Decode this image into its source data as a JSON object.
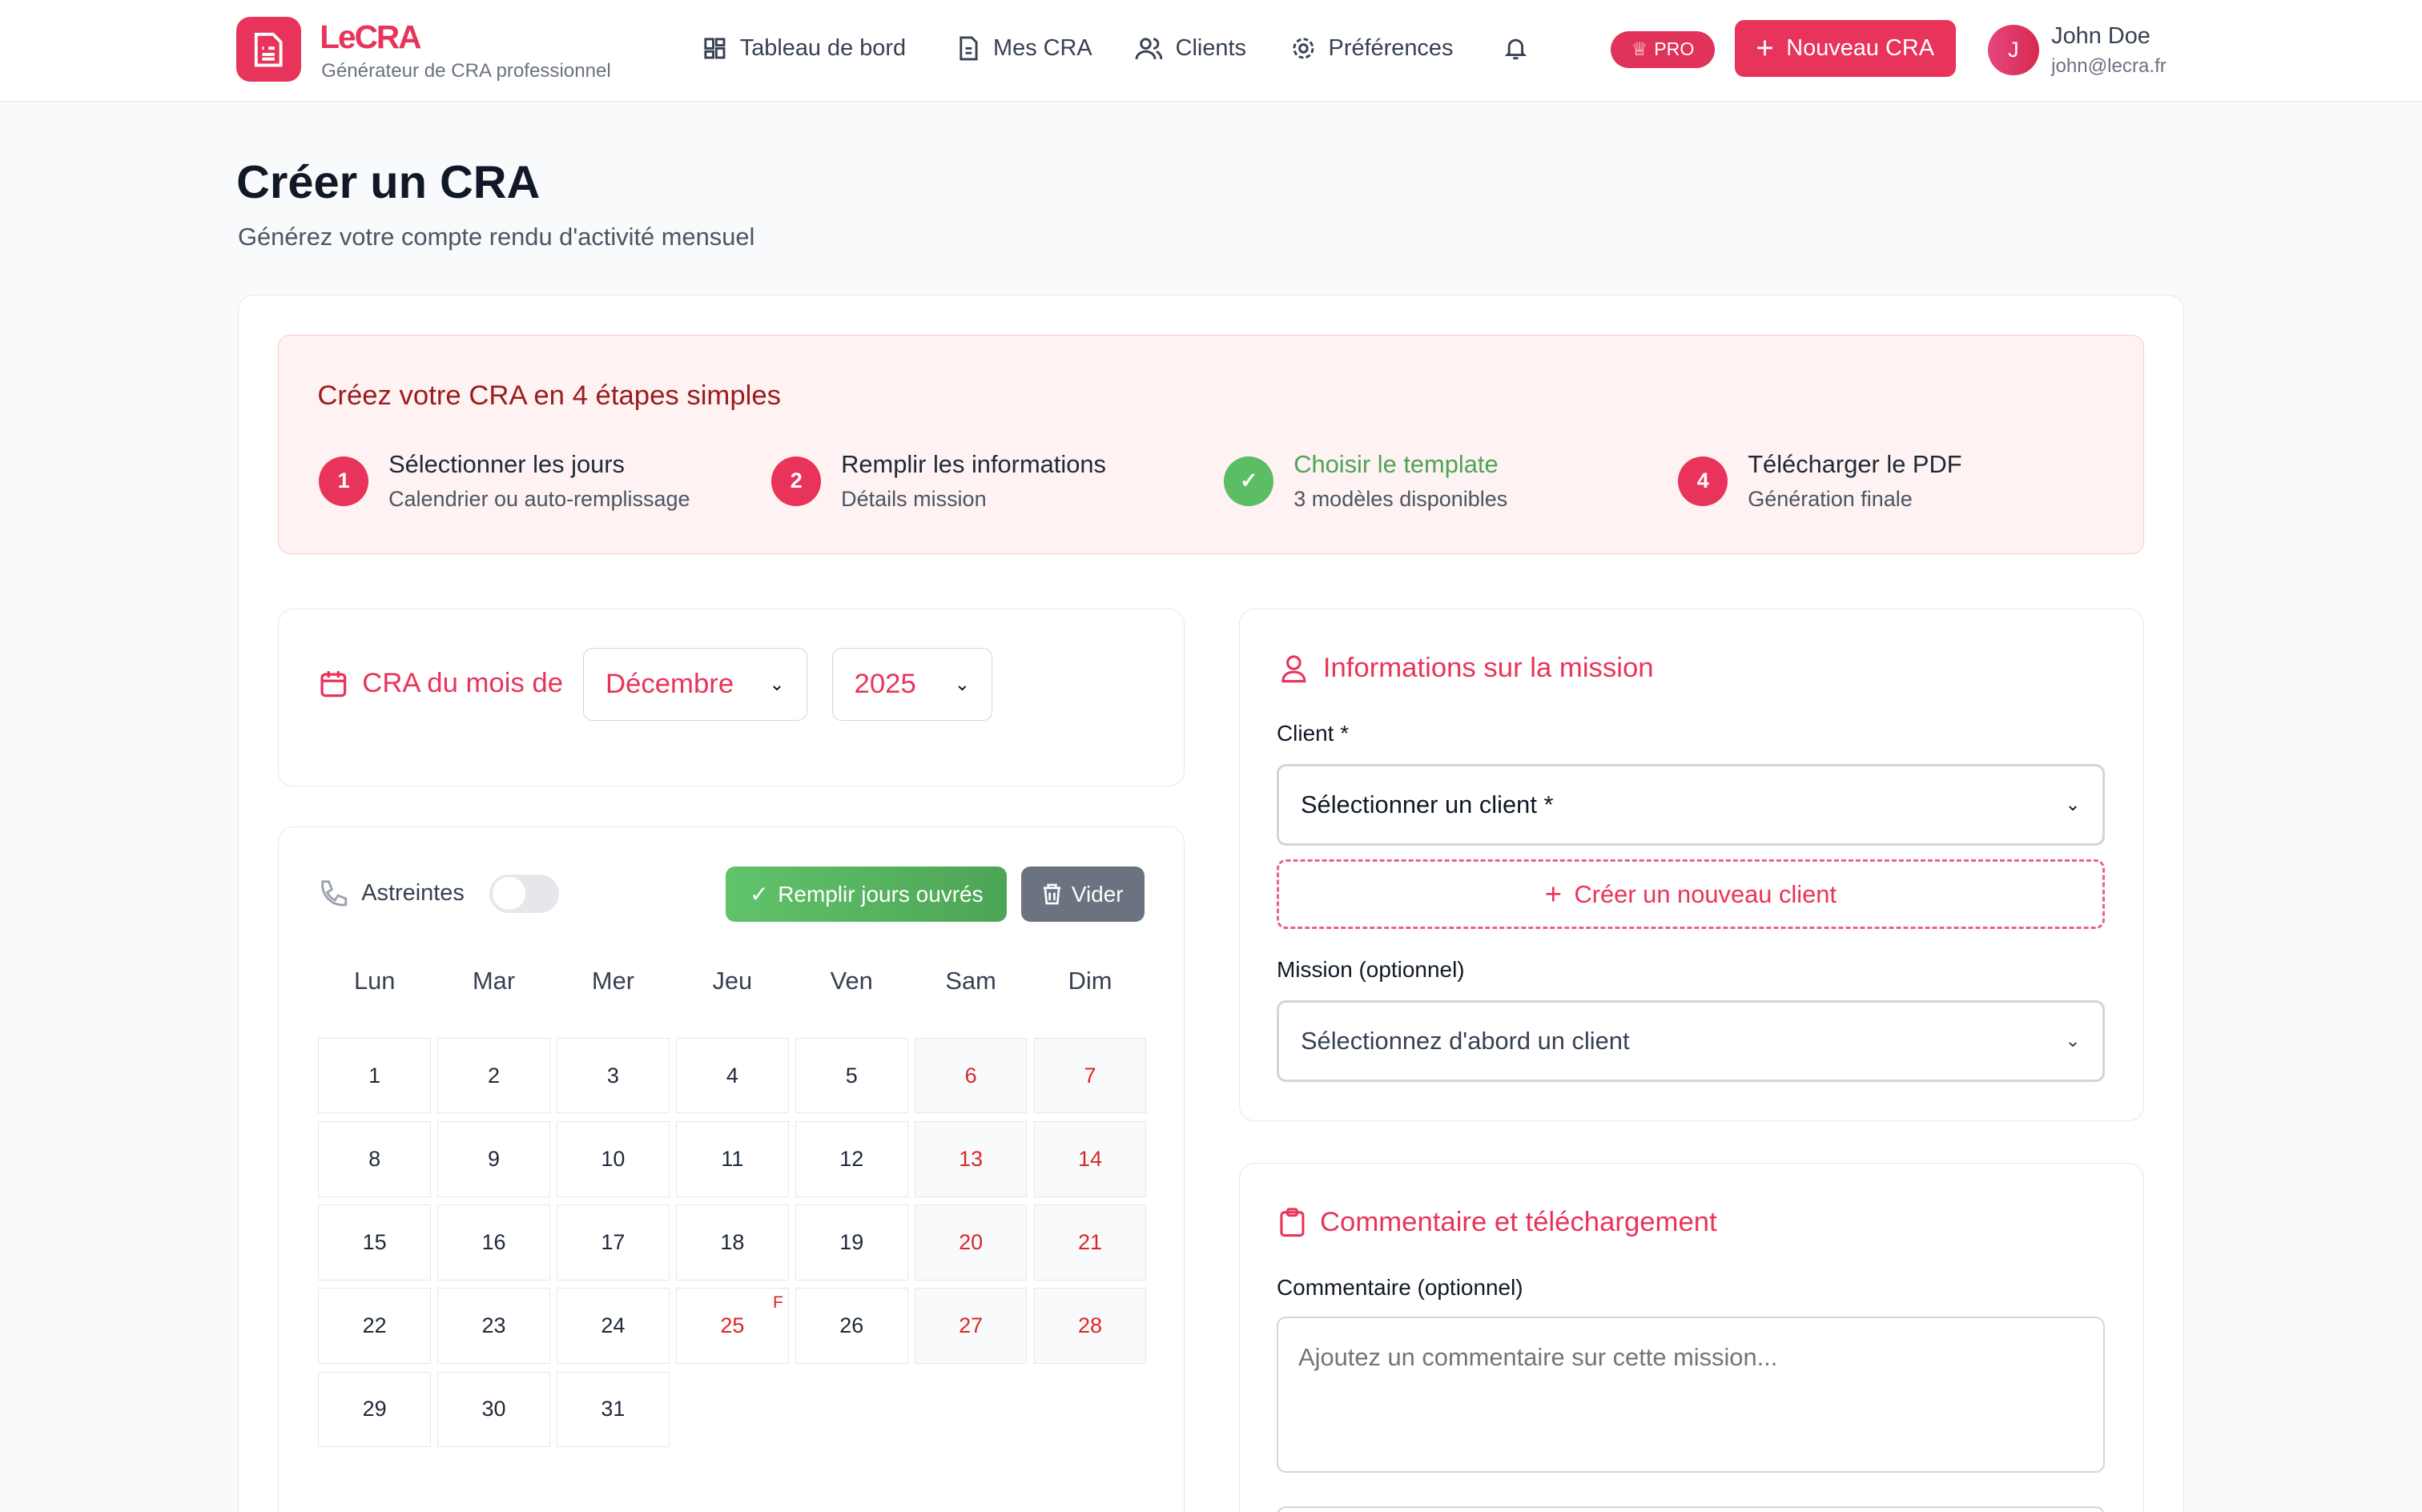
{
  "header": {
    "brand": "LeCRA",
    "tagline": "Générateur de CRA professionnel",
    "nav": [
      {
        "label": "Tableau de bord",
        "icon": "dashboard-icon"
      },
      {
        "label": "Mes CRA",
        "icon": "document-icon"
      },
      {
        "label": "Clients",
        "icon": "users-icon"
      },
      {
        "label": "Préférences",
        "icon": "gear-icon"
      }
    ],
    "pro_badge": "PRO",
    "new_button": "Nouveau CRA",
    "user": {
      "initial": "J",
      "name": "John Doe",
      "email": "john@lecra.fr"
    }
  },
  "page": {
    "title": "Créer un CRA",
    "subtitle": "Générez votre compte rendu d'activité mensuel"
  },
  "steps": {
    "heading": "Créez votre CRA en 4 étapes simples",
    "items": [
      {
        "badge": "1",
        "title": "Sélectionner les jours",
        "desc": "Calendrier ou auto-remplissage",
        "done": false
      },
      {
        "badge": "2",
        "title": "Remplir les informations",
        "desc": "Détails mission",
        "done": false
      },
      {
        "badge": "✓",
        "title": "Choisir le template",
        "desc": "3 modèles disponibles",
        "done": true
      },
      {
        "badge": "4",
        "title": "Télécharger le PDF",
        "desc": "Génération finale",
        "done": false
      }
    ]
  },
  "month": {
    "label": "CRA du mois de",
    "month": "Décembre",
    "year": "2025"
  },
  "calendar": {
    "astreintes_label": "Astreintes",
    "astreintes_on": false,
    "fill_button": "Remplir jours ouvrés",
    "clear_button": "Vider",
    "weekdays": [
      "Lun",
      "Mar",
      "Mer",
      "Jeu",
      "Ven",
      "Sam",
      "Dim"
    ],
    "first_weekday": 0,
    "days": 31,
    "holidays": [
      {
        "day": 25,
        "mark": "F"
      }
    ]
  },
  "mission": {
    "heading": "Informations sur la mission",
    "client_label": "Client *",
    "client_value": "Sélectionner un client *",
    "create_client": "Créer un nouveau client",
    "mission_label": "Mission (optionnel)",
    "mission_value": "Sélectionnez d'abord un client"
  },
  "comment": {
    "heading": "Commentaire et téléchargement",
    "label": "Commentaire (optionnel)",
    "placeholder": "Ajoutez un commentaire sur cette mission..."
  },
  "colors": {
    "accent": "#e8345a",
    "success": "#5bbd64",
    "muted_button": "#6b7280",
    "weekend": "#dc2626"
  }
}
